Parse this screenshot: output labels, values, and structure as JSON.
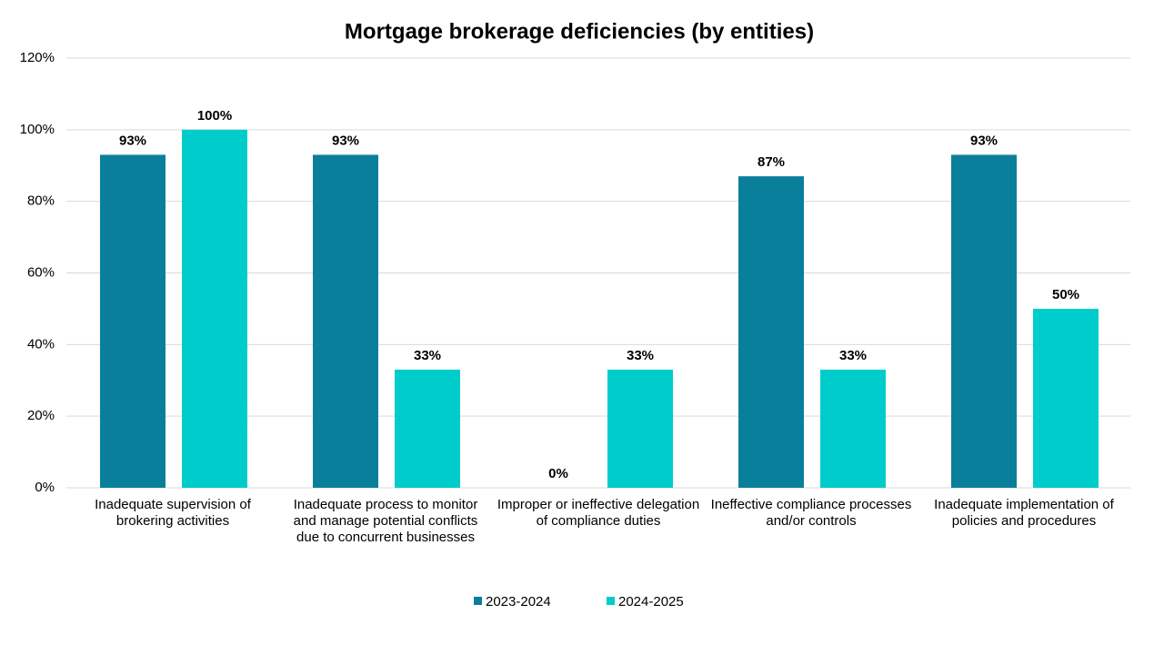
{
  "chart_data": {
    "type": "bar",
    "title": "Mortgage brokerage deficiencies (by entities)",
    "categories": [
      "Inadequate supervision of brokering activities",
      "Inadequate process to monitor and manage potential conflicts due to concurrent businesses",
      "Improper or ineffective delegation of compliance duties",
      "Ineffective compliance processes and/or controls",
      "Inadequate implementation of policies and procedures"
    ],
    "series": [
      {
        "name": "2023-2024",
        "color": "#0a7f9c",
        "values": [
          93,
          93,
          0,
          87,
          93
        ],
        "value_labels": [
          "93%",
          "93%",
          "0%",
          "87%",
          "93%"
        ]
      },
      {
        "name": "2024-2025",
        "color": "#00cccc",
        "values": [
          100,
          33,
          33,
          33,
          50
        ],
        "value_labels": [
          "100%",
          "33%",
          "33%",
          "33%",
          "50%"
        ]
      }
    ],
    "ylim": [
      0,
      120
    ],
    "yticks": [
      {
        "value": 0,
        "label": "0%"
      },
      {
        "value": 20,
        "label": "20%"
      },
      {
        "value": 40,
        "label": "40%"
      },
      {
        "value": 60,
        "label": "60%"
      },
      {
        "value": 80,
        "label": "80%"
      },
      {
        "value": 100,
        "label": "100%"
      },
      {
        "value": 120,
        "label": "120%"
      }
    ],
    "grid": true,
    "legend": "bottom"
  }
}
